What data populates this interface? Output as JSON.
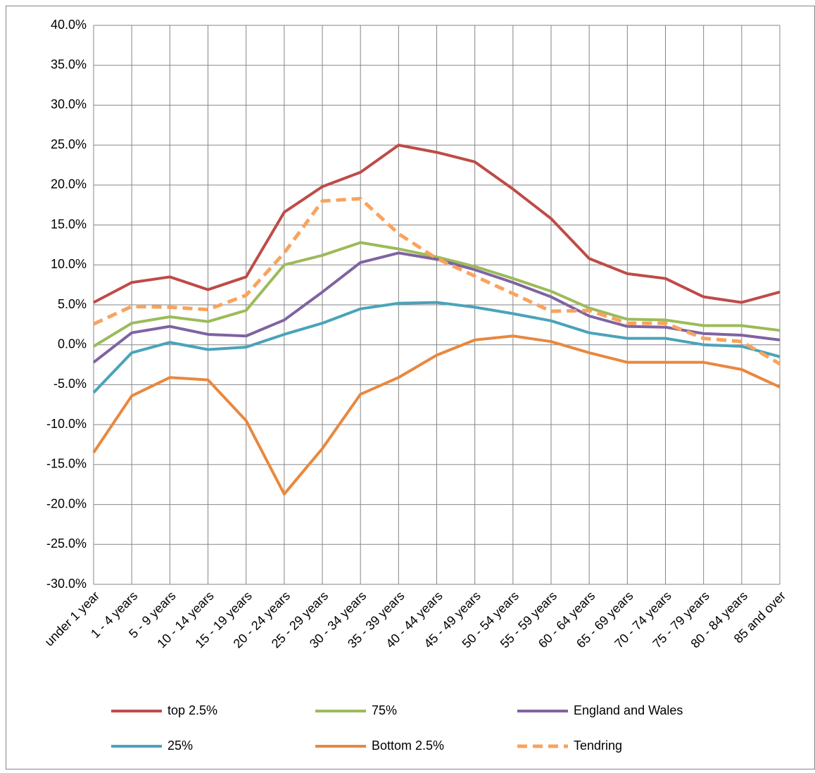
{
  "chart_data": {
    "type": "line",
    "categories": [
      "under 1 year",
      "1 - 4 years",
      "5 - 9 years",
      "10 - 14 years",
      "15 - 19 years",
      "20 - 24 years",
      "25 - 29 years",
      "30 - 34 years",
      "35 - 39 years",
      "40 - 44 years",
      "45 - 49 years",
      "50 - 54 years",
      "55 - 59 years",
      "60 - 64 years",
      "65 - 69 years",
      "70 - 74 years",
      "75 - 79 years",
      "80 - 84 years",
      "85 and over"
    ],
    "series": [
      {
        "name": "top 2.5%",
        "color": "#be4b48",
        "dashed": false,
        "values": [
          5.3,
          7.8,
          8.5,
          6.9,
          8.5,
          16.6,
          19.8,
          21.6,
          25.0,
          24.1,
          22.9,
          19.5,
          15.8,
          10.8,
          8.9,
          8.3,
          6.0,
          5.3,
          6.6
        ]
      },
      {
        "name": "75%",
        "color": "#9bbb59",
        "dashed": false,
        "values": [
          -0.2,
          2.7,
          3.5,
          2.9,
          4.3,
          10.0,
          11.2,
          12.8,
          12.0,
          11.0,
          9.8,
          8.3,
          6.7,
          4.6,
          3.2,
          3.1,
          2.4,
          2.4,
          1.8
        ]
      },
      {
        "name": "England and Wales",
        "color": "#7f63a1",
        "dashed": false,
        "values": [
          -2.2,
          1.5,
          2.3,
          1.3,
          1.1,
          3.1,
          6.6,
          10.3,
          11.5,
          10.7,
          9.4,
          7.8,
          6.0,
          3.6,
          2.3,
          2.2,
          1.4,
          1.2,
          0.6
        ]
      },
      {
        "name": "25%",
        "color": "#4aa3bb",
        "dashed": false,
        "values": [
          -6.0,
          -1.0,
          0.3,
          -0.6,
          -0.3,
          1.3,
          2.7,
          4.5,
          5.2,
          5.3,
          4.7,
          3.9,
          3.0,
          1.5,
          0.8,
          0.8,
          0.0,
          -0.2,
          -1.5
        ]
      },
      {
        "name": "Bottom 2.5%",
        "color": "#e8883e",
        "dashed": false,
        "values": [
          -13.5,
          -6.4,
          -4.1,
          -4.4,
          -9.5,
          -18.7,
          -13.0,
          -6.2,
          -4.1,
          -1.3,
          0.6,
          1.1,
          0.4,
          -1.0,
          -2.2,
          -2.2,
          -2.2,
          -3.1,
          -5.3
        ]
      },
      {
        "name": "Tendring",
        "color": "#f9a35c",
        "dashed": true,
        "values": [
          2.6,
          4.8,
          4.7,
          4.4,
          6.2,
          11.5,
          18.0,
          18.3,
          13.9,
          10.8,
          8.6,
          6.4,
          4.2,
          4.3,
          2.7,
          2.7,
          0.8,
          0.4,
          -2.4
        ]
      }
    ],
    "ylim": [
      -30,
      40
    ],
    "yticks": [
      {
        "value": -30,
        "label": "-30.0%"
      },
      {
        "value": -25,
        "label": "-25.0%"
      },
      {
        "value": -20,
        "label": "-20.0%"
      },
      {
        "value": -15,
        "label": "-15.0%"
      },
      {
        "value": -10,
        "label": "-10.0%"
      },
      {
        "value": -5,
        "label": "-5.0%"
      },
      {
        "value": 0,
        "label": "0.0%"
      },
      {
        "value": 5,
        "label": "5.0%"
      },
      {
        "value": 10,
        "label": "10.0%"
      },
      {
        "value": 15,
        "label": "15.0%"
      },
      {
        "value": 20,
        "label": "20.0%"
      },
      {
        "value": 25,
        "label": "25.0%"
      },
      {
        "value": 30,
        "label": "30.0%"
      },
      {
        "value": 35,
        "label": "35.0%"
      },
      {
        "value": 40,
        "label": "40.0%"
      }
    ],
    "grid": true,
    "legend": "bottom"
  }
}
